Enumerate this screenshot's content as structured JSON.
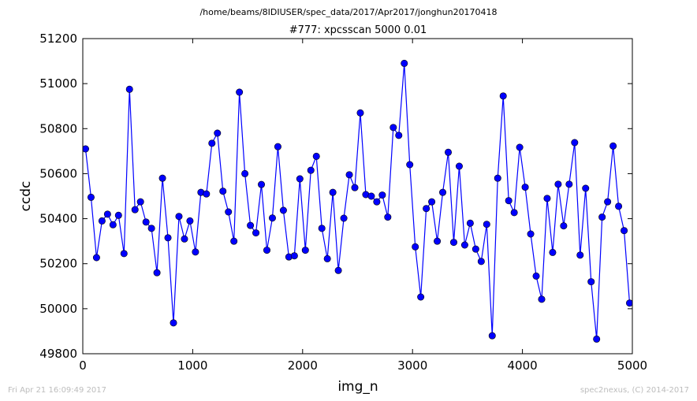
{
  "figure": {
    "suptitle": "/home/beams/8IDIUSER/spec_data/2017/Apr2017/jonghun20170418",
    "footer_left": "Fri Apr 21 16:09:49 2017",
    "footer_right": "spec2nexus, (C) 2014-2017"
  },
  "chart_data": {
    "type": "line",
    "title": "#777: xpcsscan 5000 0.01",
    "xlabel": "img_n",
    "ylabel": "ccdc",
    "xlim": [
      0,
      5000
    ],
    "ylim": [
      49800,
      51200
    ],
    "xticks": [
      0,
      1000,
      2000,
      3000,
      4000,
      5000
    ],
    "yticks": [
      49800,
      50000,
      50200,
      50400,
      50600,
      50800,
      51000,
      51200
    ],
    "grid": false,
    "legend": "none",
    "series_color": "#0000ff",
    "marker": "circle",
    "x": [
      25,
      75,
      125,
      175,
      225,
      275,
      325,
      375,
      425,
      475,
      525,
      575,
      625,
      675,
      725,
      775,
      825,
      875,
      925,
      975,
      1025,
      1075,
      1125,
      1175,
      1225,
      1275,
      1325,
      1375,
      1425,
      1475,
      1525,
      1575,
      1625,
      1675,
      1725,
      1775,
      1825,
      1875,
      1925,
      1975,
      2025,
      2075,
      2125,
      2175,
      2225,
      2275,
      2325,
      2375,
      2425,
      2475,
      2525,
      2575,
      2625,
      2675,
      2725,
      2775,
      2825,
      2875,
      2925,
      2975,
      3025,
      3075,
      3125,
      3175,
      3225,
      3275,
      3325,
      3375,
      3425,
      3475,
      3525,
      3575,
      3625,
      3675,
      3725,
      3775,
      3825,
      3875,
      3925,
      3975,
      4025,
      4075,
      4125,
      4175,
      4225,
      4275,
      4325,
      4375,
      4425,
      4475,
      4525,
      4575,
      4625,
      4675,
      4725,
      4775,
      4825,
      4875,
      4925,
      4975
    ],
    "y": [
      50710,
      50495,
      50227,
      50390,
      50420,
      50373,
      50415,
      50245,
      50975,
      50440,
      50475,
      50385,
      50357,
      50160,
      50580,
      50315,
      49937,
      50410,
      50310,
      50390,
      50252,
      50517,
      50510,
      50735,
      50780,
      50522,
      50430,
      50300,
      50962,
      50600,
      50370,
      50337,
      50552,
      50260,
      50403,
      50720,
      50437,
      50230,
      50235,
      50577,
      50260,
      50615,
      50677,
      50357,
      50222,
      50517,
      50170,
      50402,
      50595,
      50538,
      50870,
      50507,
      50500,
      50475,
      50505,
      50407,
      50805,
      50770,
      51090,
      50640,
      50275,
      50052,
      50445,
      50475,
      50300,
      50517,
      50695,
      50295,
      50633,
      50283,
      50380,
      50265,
      50210,
      50375,
      49880,
      50580,
      50945,
      50480,
      50427,
      50717,
      50540,
      50332,
      50145,
      50042,
      50490,
      50250,
      50553,
      50368,
      50553,
      50738,
      50238,
      50535,
      50120,
      49865,
      50407,
      50475,
      50723,
      50455,
      50347,
      50025
    ]
  }
}
